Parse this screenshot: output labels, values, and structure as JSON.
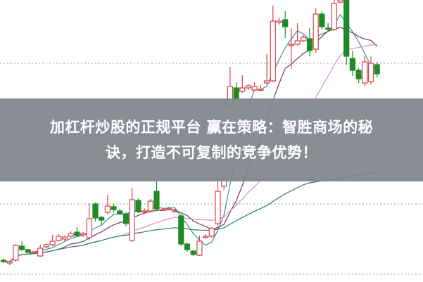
{
  "headline": {
    "line1": "加杠杆炒股的正规平台 赢在策略：智胜商场的秘",
    "line2": "诀，打造不可复制的竞争优势！"
  },
  "colors": {
    "up": "#d9424a",
    "down": "#1e8b24",
    "ma5": "#3a8f9a",
    "ma10": "#6b3a5e",
    "ma20": "#e08ae0",
    "ma60": "#2f7a55",
    "grid": "#999999",
    "banner": "#80858c"
  },
  "chart_data": {
    "type": "candlestick",
    "title": "",
    "grid": true,
    "gridlines": [
      10,
      110,
      210,
      310
    ],
    "moving_averages": [
      5,
      10,
      20,
      60
    ],
    "candles": [
      {
        "o": 30,
        "c": 28,
        "h": 32,
        "l": 26
      },
      {
        "o": 26,
        "c": 28,
        "h": 29,
        "l": 23
      },
      {
        "o": 30,
        "c": 51,
        "h": 53,
        "l": 28
      },
      {
        "o": 50,
        "c": 45,
        "h": 57,
        "l": 43
      },
      {
        "o": 45,
        "c": 41,
        "h": 46,
        "l": 40
      },
      {
        "o": 42,
        "c": 42,
        "h": 43,
        "l": 41
      },
      {
        "o": 36,
        "c": 47,
        "h": 52,
        "l": 35
      },
      {
        "o": 49,
        "c": 52,
        "h": 54,
        "l": 47
      },
      {
        "o": 52,
        "c": 57,
        "h": 66,
        "l": 50
      },
      {
        "o": 58,
        "c": 64,
        "h": 67,
        "l": 56
      },
      {
        "o": 60,
        "c": 63,
        "h": 65,
        "l": 57
      },
      {
        "o": 64,
        "c": 68,
        "h": 71,
        "l": 62
      },
      {
        "o": 70,
        "c": 65,
        "h": 77,
        "l": 64
      },
      {
        "o": 66,
        "c": 68,
        "h": 70,
        "l": 63
      },
      {
        "o": 62,
        "c": 89,
        "h": 111,
        "l": 58
      },
      {
        "o": 110,
        "c": 90,
        "h": 112,
        "l": 85
      },
      {
        "o": 91,
        "c": 87,
        "h": 93,
        "l": 80
      },
      {
        "o": 98,
        "c": 107,
        "h": 123,
        "l": 95
      },
      {
        "o": 106,
        "c": 102,
        "h": 110,
        "l": 98
      },
      {
        "o": 100,
        "c": 96,
        "h": 103,
        "l": 94
      },
      {
        "o": 96,
        "c": 82,
        "h": 98,
        "l": 78
      },
      {
        "o": 58,
        "c": 116,
        "h": 133,
        "l": 56
      },
      {
        "o": 115,
        "c": 99,
        "h": 118,
        "l": 97
      },
      {
        "o": 100,
        "c": 100,
        "h": 104,
        "l": 96
      },
      {
        "o": 100,
        "c": 114,
        "h": 117,
        "l": 98
      },
      {
        "o": 128,
        "c": 103,
        "h": 142,
        "l": 100
      },
      {
        "o": 102,
        "c": 102,
        "h": 104,
        "l": 100
      },
      {
        "o": 103,
        "c": 103,
        "h": 106,
        "l": 101
      },
      {
        "o": 100,
        "c": 100,
        "h": 103,
        "l": 98
      },
      {
        "o": 93,
        "c": 53,
        "h": 95,
        "l": 50
      },
      {
        "o": 53,
        "c": 45,
        "h": 55,
        "l": 42
      },
      {
        "o": 43,
        "c": 38,
        "h": 44,
        "l": 36
      },
      {
        "o": 37,
        "c": 57,
        "h": 65,
        "l": 36
      },
      {
        "o": 64,
        "c": 64,
        "h": 67,
        "l": 60
      },
      {
        "o": 64,
        "c": 75,
        "h": 77,
        "l": 62
      },
      {
        "o": 82,
        "c": 128,
        "h": 150,
        "l": 78
      },
      {
        "o": 135,
        "c": 146,
        "h": 160,
        "l": 130
      },
      {
        "o": 250,
        "c": 277,
        "h": 305,
        "l": 248
      },
      {
        "o": 275,
        "c": 260,
        "h": 283,
        "l": 258
      },
      {
        "o": 270,
        "c": 275,
        "h": 293,
        "l": 268
      },
      {
        "o": 275,
        "c": 278,
        "h": 280,
        "l": 272
      },
      {
        "o": 272,
        "c": 277,
        "h": 283,
        "l": 270
      },
      {
        "o": 273,
        "c": 273,
        "h": 279,
        "l": 270
      },
      {
        "o": 282,
        "c": 285,
        "h": 323,
        "l": 280
      },
      {
        "o": 285,
        "c": 370,
        "h": 392,
        "l": 283
      },
      {
        "o": 368,
        "c": 370,
        "h": 375,
        "l": 365
      },
      {
        "o": 372,
        "c": 362,
        "h": 384,
        "l": 346
      },
      {
        "o": 337,
        "c": 337,
        "h": 360,
        "l": 302
      },
      {
        "o": 337,
        "c": 342,
        "h": 367,
        "l": 335
      },
      {
        "o": 342,
        "c": 347,
        "h": 350,
        "l": 340
      },
      {
        "o": 345,
        "c": 328,
        "h": 360,
        "l": 320
      },
      {
        "o": 330,
        "c": 380,
        "h": 388,
        "l": 325
      },
      {
        "o": 380,
        "c": 362,
        "h": 384,
        "l": 358
      },
      {
        "o": 360,
        "c": 359,
        "h": 367,
        "l": 356
      },
      {
        "o": 358,
        "c": 395,
        "h": 400,
        "l": 356
      },
      {
        "o": 397,
        "c": 400,
        "h": 402,
        "l": 395
      },
      {
        "o": 400,
        "c": 320,
        "h": 402,
        "l": 308
      },
      {
        "o": 317,
        "c": 300,
        "h": 328,
        "l": 292
      },
      {
        "o": 300,
        "c": 288,
        "h": 303,
        "l": 282
      },
      {
        "o": 282,
        "c": 312,
        "h": 320,
        "l": 278
      },
      {
        "o": 284,
        "c": 310,
        "h": 320,
        "l": 280
      },
      {
        "o": 308,
        "c": 295,
        "h": 312,
        "l": 290
      }
    ]
  }
}
